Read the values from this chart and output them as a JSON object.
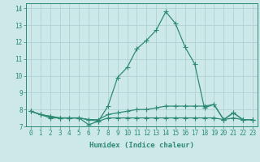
{
  "xlabel": "Humidex (Indice chaleur)",
  "x": [
    0,
    1,
    2,
    3,
    4,
    5,
    6,
    7,
    8,
    9,
    10,
    11,
    12,
    13,
    14,
    15,
    16,
    17,
    18,
    19,
    20,
    21,
    22,
    23
  ],
  "line1": [
    7.9,
    7.7,
    7.6,
    7.5,
    7.5,
    7.5,
    7.1,
    7.3,
    8.2,
    9.9,
    10.5,
    11.6,
    12.1,
    12.7,
    13.8,
    13.1,
    11.7,
    10.7,
    8.1,
    8.3,
    7.4,
    7.8,
    7.4,
    7.4
  ],
  "line2": [
    7.9,
    7.7,
    7.6,
    7.5,
    7.5,
    7.5,
    7.4,
    7.4,
    7.7,
    7.8,
    7.9,
    8.0,
    8.0,
    8.1,
    8.2,
    8.2,
    8.2,
    8.2,
    8.2,
    8.3,
    7.4,
    7.8,
    7.4,
    7.4
  ],
  "line3": [
    7.9,
    7.7,
    7.5,
    7.5,
    7.5,
    7.5,
    7.4,
    7.3,
    7.5,
    7.5,
    7.5,
    7.5,
    7.5,
    7.5,
    7.5,
    7.5,
    7.5,
    7.5,
    7.5,
    7.5,
    7.4,
    7.5,
    7.4,
    7.4
  ],
  "ylim": [
    7.0,
    14.3
  ],
  "yticks": [
    7,
    8,
    9,
    10,
    11,
    12,
    13,
    14
  ],
  "line_color": "#2d8b72",
  "bg_color": "#cce8e8",
  "grid_color": "#aacece",
  "marker": "+",
  "marker_size": 4,
  "linewidth": 0.9,
  "tick_fontsize": 5.5,
  "xlabel_fontsize": 6.5
}
